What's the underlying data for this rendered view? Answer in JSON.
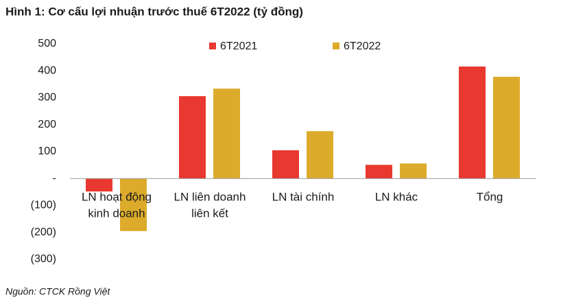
{
  "chart_data": {
    "type": "bar",
    "title": "Hình 1: Cơ cấu lợi nhuận trước thuế 6T2022 (tỷ đồng)",
    "source": "Nguồn: CTCK Rồng Việt",
    "categories": [
      [
        "LN hoạt động",
        "kinh doanh"
      ],
      [
        "LN liên doanh",
        "liên kết"
      ],
      [
        "LN tài chính"
      ],
      [
        "LN khác"
      ],
      [
        "Tổng"
      ]
    ],
    "series": [
      {
        "name": "6T2021",
        "color": "#e8382f",
        "values": [
          -48,
          306,
          105,
          51,
          416
        ]
      },
      {
        "name": "6T2022",
        "color": "#dcab2b",
        "values": [
          -195,
          334,
          176,
          56,
          378
        ]
      }
    ],
    "ylim": [
      -300,
      500
    ],
    "yticks": [
      {
        "value": -300,
        "label": "(300)"
      },
      {
        "value": -200,
        "label": "(200)"
      },
      {
        "value": -100,
        "label": "(100)"
      },
      {
        "value": 0,
        "label": "-"
      },
      100,
      200,
      300,
      400,
      500
    ],
    "grid": false,
    "legend": "top"
  }
}
